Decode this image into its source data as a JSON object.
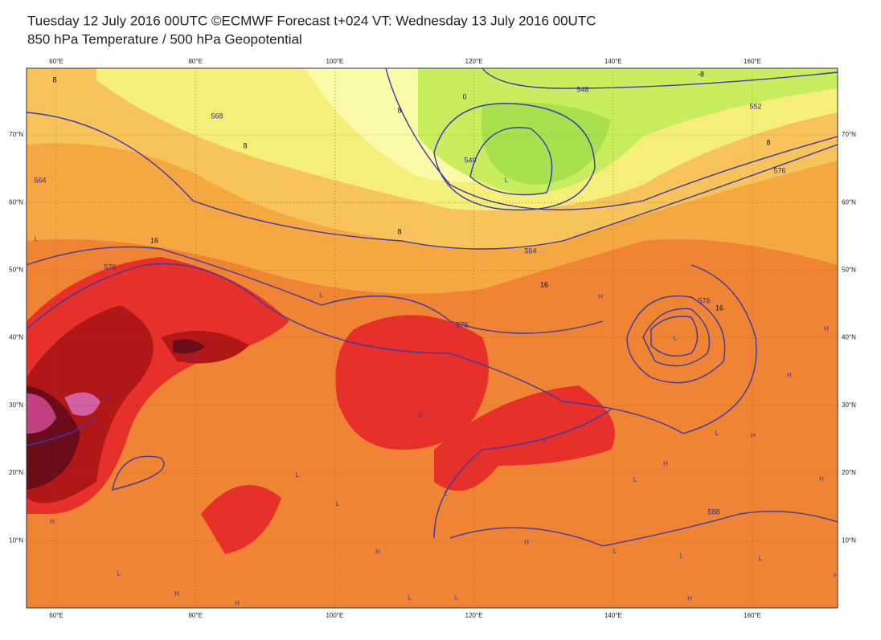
{
  "header": {
    "title": "Tuesday 12 July 2016 00UTC ©ECMWF Forecast t+024 VT: Wednesday 13 July 2016 00UTC",
    "subtitle": "850 hPa Temperature / 500 hPa Geopotential"
  },
  "map": {
    "lon_labels": [
      "60°E",
      "80°E",
      "100°E",
      "120°E",
      "140°E",
      "160°E"
    ],
    "lat_labels": [
      "70°N",
      "60°N",
      "50°N",
      "40°N",
      "30°N",
      "20°N",
      "10°N"
    ],
    "contour_labels": [
      "8",
      "8",
      "564",
      "568",
      "16",
      "576",
      "8",
      "0",
      "540",
      "548",
      "-8",
      "552",
      "8",
      "576",
      "8",
      "564",
      "16",
      "576",
      "576",
      "16",
      "588"
    ],
    "pressure_markers": [
      "L",
      "L",
      "L",
      "L",
      "H",
      "H",
      "H",
      "H",
      "H",
      "H",
      "H",
      "H",
      "H",
      "H",
      "L",
      "L",
      "L",
      "H",
      "L",
      "L",
      "H",
      "H",
      "H",
      "L",
      "H",
      "L",
      "L",
      "H",
      "L",
      "H",
      "L",
      "L"
    ]
  }
}
